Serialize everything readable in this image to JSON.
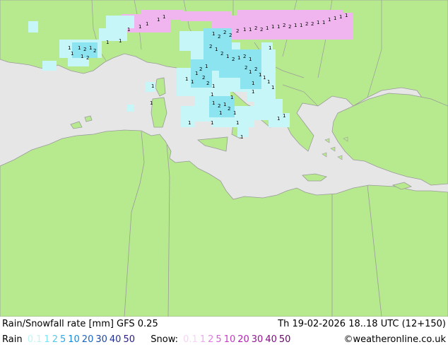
{
  "header": {
    "title": "Rain/Snowfall rate [mm] GFS 0.25",
    "datetime": "Th 19-02-2026 18..18 UTC (12+150)"
  },
  "legend": {
    "rain_label": "Rain",
    "rain_levels": [
      {
        "text": "0.1",
        "color": "#bdf7f5"
      },
      {
        "text": "1",
        "color": "#7ee0ef"
      },
      {
        "text": "2",
        "color": "#54c9e9"
      },
      {
        "text": "5",
        "color": "#32a7e2"
      },
      {
        "text": "10",
        "color": "#1a87d7"
      },
      {
        "text": "20",
        "color": "#1766c5"
      },
      {
        "text": "30",
        "color": "#1d47a8"
      },
      {
        "text": "40",
        "color": "#233090"
      },
      {
        "text": "50",
        "color": "#281e7a"
      }
    ],
    "snow_label": "Snow:",
    "snow_levels": [
      {
        "text": "0.1",
        "color": "#f7d3f5"
      },
      {
        "text": "1",
        "color": "#f0a9ee"
      },
      {
        "text": "2",
        "color": "#e680e5"
      },
      {
        "text": "5",
        "color": "#d85bd9"
      },
      {
        "text": "10",
        "color": "#c83ac8"
      },
      {
        "text": "20",
        "color": "#b021b2"
      },
      {
        "text": "30",
        "color": "#951597"
      },
      {
        "text": "40",
        "color": "#7b0e7e"
      },
      {
        "text": "50",
        "color": "#5f0863"
      }
    ]
  },
  "credit": "©weatheronline.co.uk",
  "colors": {
    "sea": "#e6e6e6",
    "land": "#b7ea8f",
    "border": "#8c8c8c",
    "rain_light": "#c7f6f8",
    "rain_mid": "#8be4ef",
    "snow": "#f0b5ee"
  }
}
